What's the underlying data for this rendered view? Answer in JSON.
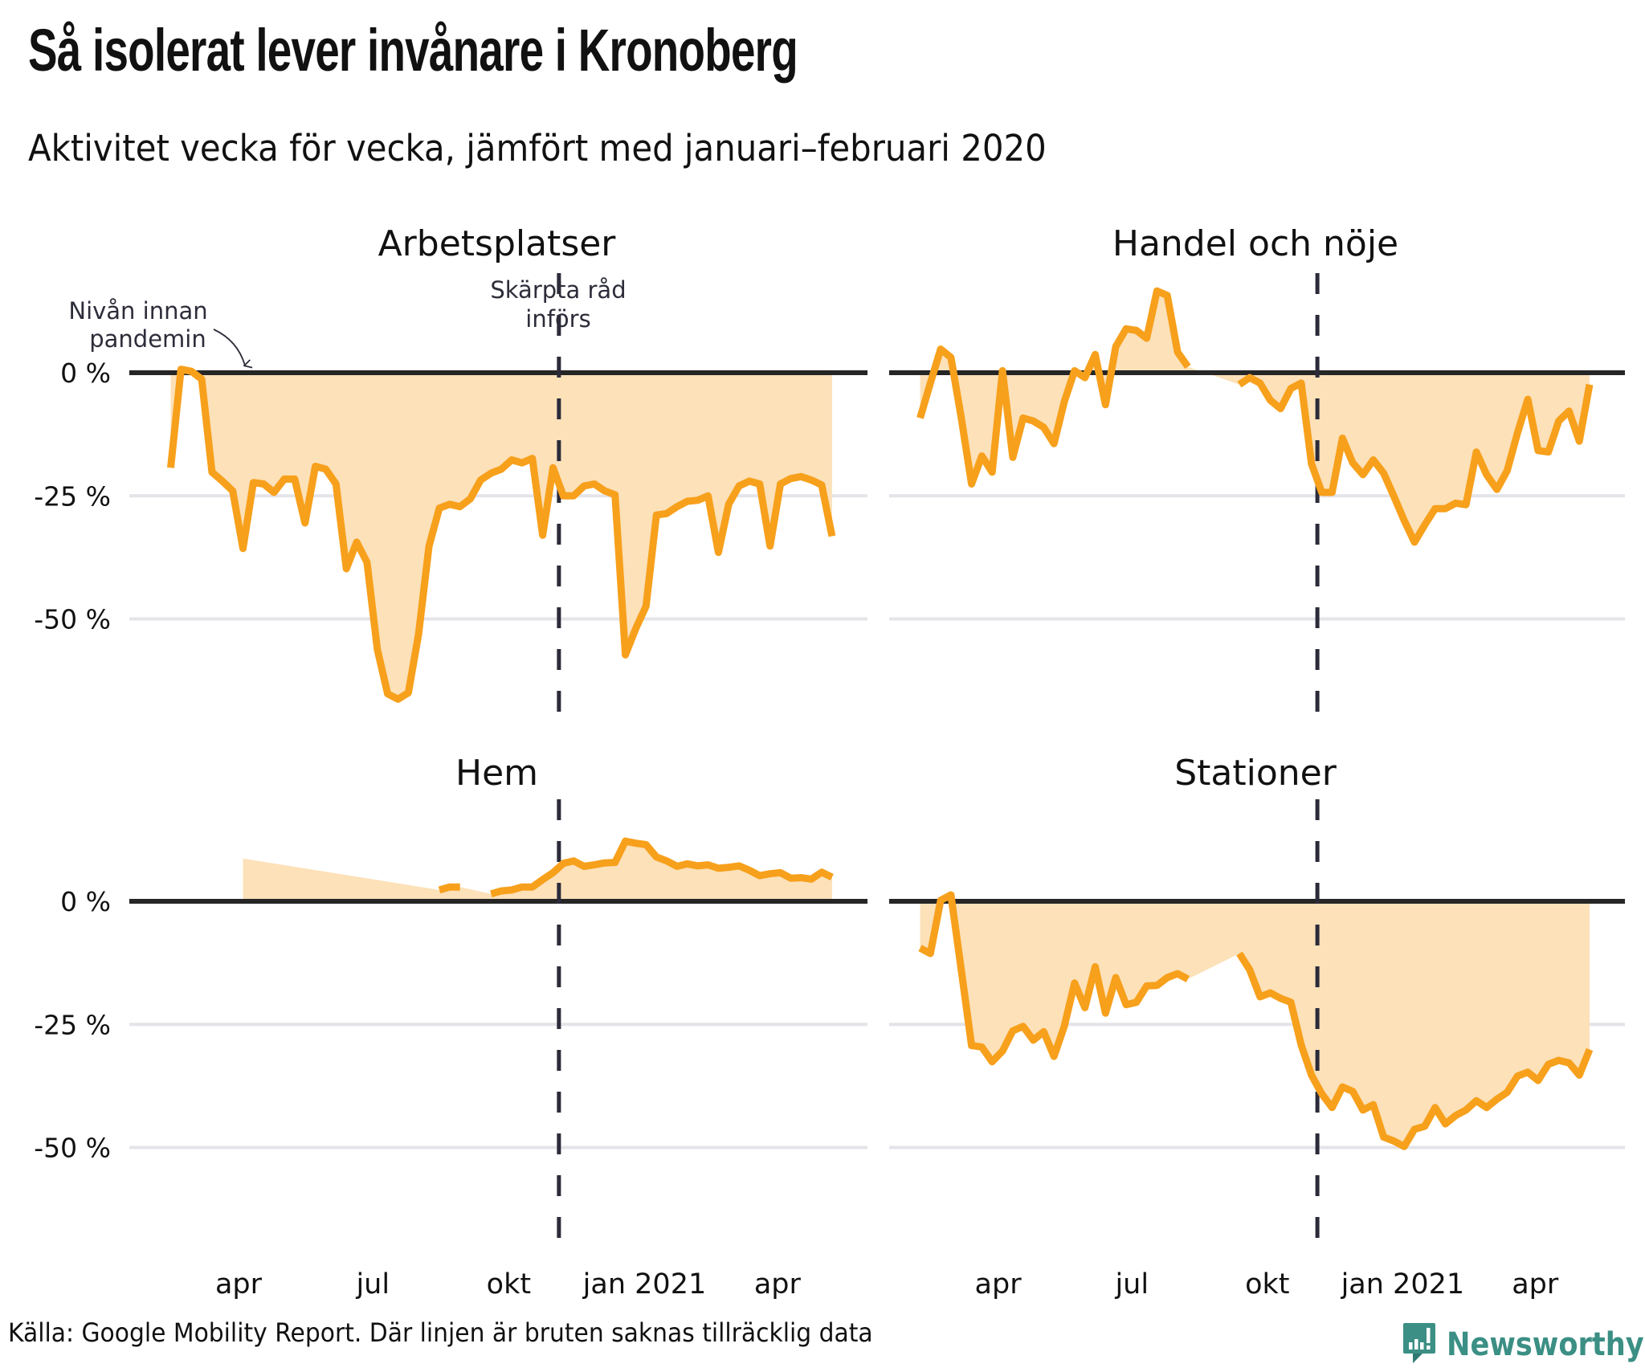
{
  "header": {
    "title": "Så isolerat lever invånare i Kronoberg",
    "subtitle": "Aktivitet vecka för vecka, jämfört med januari–februari 2020"
  },
  "footer": {
    "source": "Källa: Google Mobility Report. Där linjen är bruten saknas tillräcklig data",
    "logo_text": "Newsworthy",
    "logo_icon": "newsworthy-speech-bubble-bar-chart-icon"
  },
  "colors": {
    "line": "#f7a01c",
    "fill": "#fce1b9",
    "zero_line": "#262626",
    "grid": "#e4e4e9",
    "event_line": "#2b2b3a",
    "annotation": "#2d2d3a",
    "logo": "#3b8f84"
  },
  "chart_data": {
    "type": "area",
    "title": "Så isolerat lever invånare i Kronoberg",
    "subtitle": "Aktivitet vecka för vecka, jämfört med januari–februari 2020",
    "xlabel": "",
    "ylabel": "",
    "x_domain": [
      "2020-01-18",
      "2021-06-01"
    ],
    "x_ticks": [
      {
        "date": "2020-04-01",
        "label": "apr"
      },
      {
        "date": "2020-07-01",
        "label": "jul"
      },
      {
        "date": "2020-10-01",
        "label": "okt"
      },
      {
        "date": "2021-01-01",
        "label": "jan 2021"
      },
      {
        "date": "2021-04-01",
        "label": "apr"
      }
    ],
    "y_ticks": [
      {
        "value": 0,
        "label": "0 %"
      },
      {
        "value": -25,
        "label": "-25 %"
      },
      {
        "value": -50,
        "label": "-50 %"
      }
    ],
    "grid": true,
    "step_days": 7,
    "event": {
      "date": "2020-11-04",
      "label_line1": "Skärpta råd",
      "label_line2": "införs"
    },
    "baseline_annotation": {
      "line1": "Nivån innan",
      "line2": "pandemin"
    },
    "panels": [
      {
        "name": "Arbetsplatser",
        "ylim": [
          -70,
          16
        ],
        "start": "2020-02-15",
        "values": [
          -19.3,
          0.7,
          0.3,
          -1.3,
          -20.2,
          -22,
          -24,
          -35.7,
          -22.3,
          -22.6,
          -24.3,
          -21.6,
          -21.6,
          -30.5,
          -19,
          -19.6,
          -22.6,
          -39.8,
          -34.4,
          -38.5,
          -56.2,
          -65.2,
          -66.3,
          -65,
          -53,
          -35.2,
          -27.5,
          -26.7,
          -27.2,
          -25.6,
          -21.8,
          -20.4,
          -19.6,
          -17.7,
          -18.3,
          -17.4,
          -33,
          -19.3,
          -25,
          -25,
          -23,
          -22.6,
          -24,
          -24.8,
          -57.3,
          -52,
          -47.4,
          -28.9,
          -28.6,
          -27.2,
          -26.1,
          -25.9,
          -25,
          -36.5,
          -26.7,
          -23,
          -22,
          -22.6,
          -35.2,
          -22.6,
          -21.5,
          -21.1,
          -21.8,
          -22.8,
          -33.2
        ]
      },
      {
        "name": "Handel och nöje",
        "ylim": [
          -70,
          16
        ],
        "start": "2020-02-08",
        "values": [
          -9.2,
          -2.1,
          4.8,
          3.1,
          -9.2,
          -22.6,
          -16.9,
          -20.2,
          0.4,
          -17.2,
          -9.2,
          -9.8,
          -11.1,
          -14.4,
          -5.9,
          0.4,
          -1,
          3.7,
          -6.5,
          5.3,
          8.9,
          8.6,
          7,
          16.6,
          15.7,
          4.2,
          1.2,
          null,
          null,
          null,
          null,
          -2.4,
          -1,
          -2.1,
          -5.6,
          -7.3,
          -3.2,
          -2.1,
          -18.5,
          -24.3,
          -24.3,
          -13.3,
          -18.3,
          -20.7,
          -17.7,
          -20.4,
          -25.1,
          -30,
          -34.4,
          -30.9,
          -27.6,
          -27.6,
          -26.5,
          -26.8,
          -16.1,
          -20.7,
          -23.7,
          -19.9,
          -12.2,
          -5.4,
          -15.8,
          -16.1,
          -9.8,
          -7.8,
          -13.9,
          -2.4
        ]
      },
      {
        "name": "Hem",
        "ylim": [
          -70,
          16
        ],
        "start": "2020-02-15",
        "values": [
          null,
          null,
          null,
          null,
          null,
          null,
          null,
          8.7,
          null,
          null,
          null,
          null,
          null,
          null,
          null,
          null,
          null,
          null,
          null,
          null,
          null,
          null,
          null,
          null,
          null,
          null,
          2.3,
          2.9,
          2.9,
          null,
          null,
          1.5,
          2.1,
          2.3,
          2.9,
          2.9,
          4.4,
          5.8,
          7.7,
          8.2,
          7.1,
          7.4,
          7.8,
          7.9,
          12.2,
          11.8,
          11.5,
          9,
          8.2,
          7.1,
          7.6,
          7.2,
          7.4,
          6.7,
          6.9,
          7.2,
          6.3,
          5.2,
          5.6,
          5.8,
          4.7,
          4.8,
          4.5,
          5.9,
          4.9
        ]
      },
      {
        "name": "Stationer",
        "ylim": [
          -70,
          16
        ],
        "start": "2020-02-08",
        "values": [
          -9.5,
          -10.6,
          0.2,
          1.3,
          -14,
          -29.3,
          -29.6,
          -32.6,
          -30.4,
          -26.3,
          -25.4,
          -28.2,
          -26.5,
          -31.5,
          -25.4,
          -16.6,
          -21.6,
          -13.3,
          -22.7,
          -15.5,
          -21,
          -20.5,
          -17.2,
          -17.1,
          -15.5,
          -14.7,
          -15.8,
          null,
          null,
          null,
          null,
          -10.6,
          -13.9,
          -19.4,
          -18.6,
          -19.7,
          -20.5,
          -29.2,
          -35.3,
          -39.1,
          -41.9,
          -37.7,
          -38.6,
          -42.4,
          -41.3,
          -47.9,
          -48.7,
          -49.8,
          -46.3,
          -45.7,
          -41.9,
          -45.2,
          -43.5,
          -42.4,
          -40.5,
          -41.9,
          -40.2,
          -38.8,
          -35.5,
          -34.7,
          -36.4,
          -33.1,
          -32.3,
          -32.8,
          -35.3,
          -30.1
        ]
      }
    ]
  }
}
